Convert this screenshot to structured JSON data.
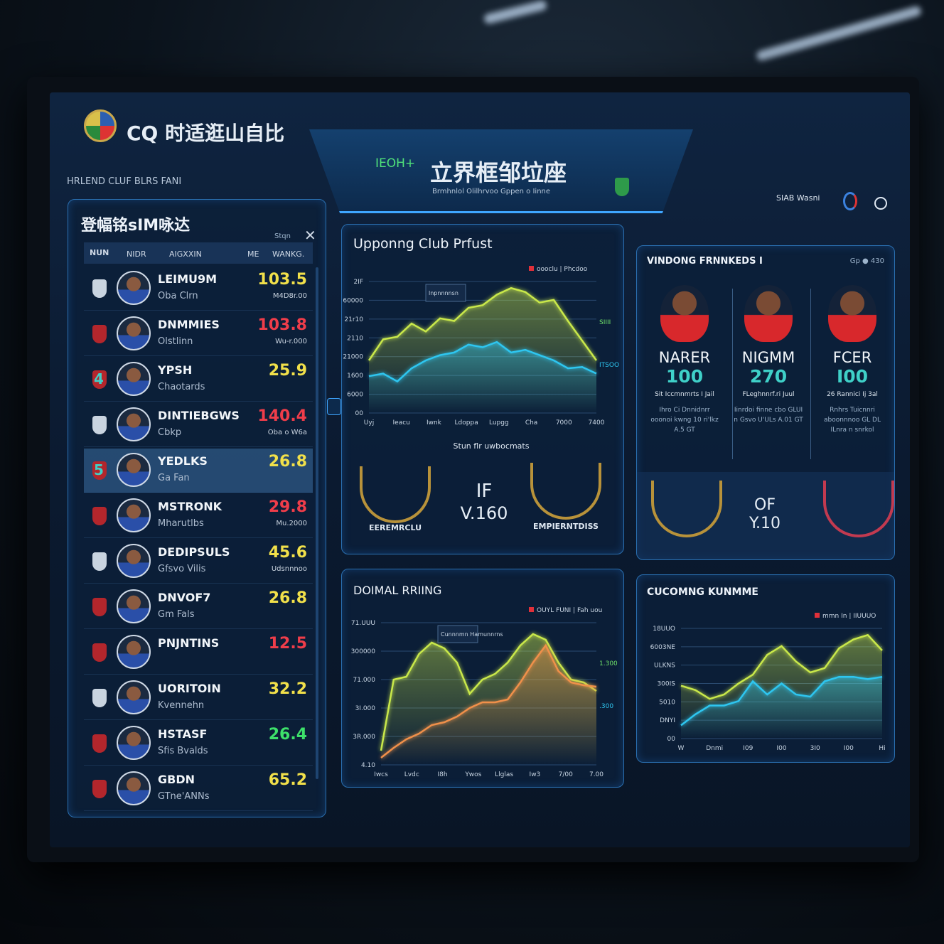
{
  "header": {
    "app_title": "CQ 时适逛山自比",
    "subtitle": "HRLEND CLUF BLRS FANI",
    "center_tag": "IEOH+",
    "center_title": "立界框邹垃座",
    "center_subtitle": "Brmhnlol Olilhrvoo Gppen o Iinne",
    "user_label": "SIAB Wasni"
  },
  "left_panel": {
    "title": "登幅铭sIM咏达",
    "action_label": "Stqn",
    "columns": [
      "NUN",
      "NIDR",
      "AIGXXIN",
      "ME",
      "WANKG."
    ],
    "rows": [
      {
        "rank": "",
        "name": "LEIMU9M",
        "club": "Oba Clrn",
        "value": "103.5",
        "sub": "M4D8r.00",
        "color": "#f1e04a"
      },
      {
        "rank": "",
        "name": "DNMMIES",
        "club": "Olstlinn",
        "value": "103.8",
        "sub": "Wu-r.000",
        "color": "#ef3d4a"
      },
      {
        "rank": "4",
        "name": "YPSH",
        "club": "Chaotards",
        "value": "25.9",
        "sub": "",
        "color": "#f1e04a"
      },
      {
        "rank": "",
        "name": "DINTIEBGWS",
        "club": "Cbkp",
        "value": "140.4",
        "sub": "Oba o W6a",
        "color": "#ef3d4a"
      },
      {
        "rank": "5",
        "name": "YEDLKS",
        "club": "Ga Fan",
        "value": "26.8",
        "sub": "",
        "color": "#f1e04a",
        "selected": true
      },
      {
        "rank": "",
        "name": "MSTRONK",
        "club": "Mharutlbs",
        "value": "29.8",
        "sub": "Mu.2000",
        "color": "#ef3d4a"
      },
      {
        "rank": "",
        "name": "DEDIPSULS",
        "club": "Gfsvo Vilis",
        "value": "45.6",
        "sub": "Udsnnnoo",
        "color": "#f1e04a"
      },
      {
        "rank": "",
        "name": "DNVOF7",
        "club": "Gm Fals",
        "value": "26.8",
        "sub": "",
        "color": "#f1e04a"
      },
      {
        "rank": "",
        "name": "PNJNTINS",
        "club": "",
        "value": "12.5",
        "sub": "",
        "color": "#ef3d4a"
      },
      {
        "rank": "",
        "name": "UORITOIN",
        "club": "Kvennehn",
        "value": "32.2",
        "sub": "",
        "color": "#f1e04a"
      },
      {
        "rank": "",
        "name": "HSTASF",
        "club": "Sfis Bvalds",
        "value": "26.4",
        "sub": "",
        "color": "#3de06a"
      },
      {
        "rank": "",
        "name": "GBDN",
        "club": "GTne'ANNs",
        "value": "65.2",
        "sub": "",
        "color": "#f1e04a"
      }
    ]
  },
  "upcoming_panel": {
    "title": "Upponng Club Prfust",
    "legend": "oooclu | Phcdoo",
    "tooltip": "lnpnnnnsn",
    "ylabels": [
      "2IF",
      "60000",
      "21r10",
      "2110",
      "21000",
      "1600",
      "6000",
      "00"
    ],
    "xlabels": [
      "Uyj",
      "Ieacu",
      "Iwnk",
      "Ldoppa",
      "Lupgg",
      "Cha",
      "7000",
      "7400"
    ],
    "end_labels": [
      "SIIII",
      "ITSOO"
    ],
    "caption": "Stun flr uwbocmats",
    "series": [
      {
        "color": "#c9e84a",
        "values": [
          40,
          56,
          58,
          68,
          62,
          72,
          70,
          80,
          82,
          90,
          95,
          92,
          84,
          86,
          70,
          55,
          40
        ]
      },
      {
        "color": "#2ec6f0",
        "values": [
          28,
          30,
          24,
          34,
          40,
          44,
          46,
          52,
          50,
          54,
          46,
          48,
          44,
          40,
          34,
          35,
          30
        ]
      }
    ],
    "badges": [
      {
        "label": "EEREMRCLU"
      },
      {
        "label": "EMPIERNTDISS"
      }
    ],
    "center_line1": "IF",
    "center_line2": "V.160"
  },
  "players_panel": {
    "title": "VINDONG FRNNKEDS I",
    "meta": "Gp ● 430",
    "players": [
      {
        "name": "NARER",
        "value": "100",
        "sub": "Sit Iccmnmrts I Jail",
        "desc": "Ihro Ci Dnnidnrr ooonoi kwng 10 ri'lkz A.5 GT"
      },
      {
        "name": "NIGMM",
        "value": "270",
        "sub": "FLeghnnrf.ri Juul",
        "desc": "Iinrdoi finne cbo GLUI n Gsvo U'ULs A.01 GT"
      },
      {
        "name": "FCER",
        "value": "I00",
        "sub": "26 Rannici Ij 3al",
        "desc": "Rnhrs Tuicnnri aboonnnoo GL DL ILnra n snrkol"
      }
    ],
    "center_line1": "OF",
    "center_line2": "Y.10"
  },
  "rating_panel": {
    "title": "DOIMAL RRIING",
    "legend": "OUYL FUNI | Fah uou",
    "tooltip": "Cunnnmn Hamunnrns",
    "ylabels": [
      "71.UUU",
      "300000",
      "71.000",
      "3I.000",
      "3R.000",
      "4.10"
    ],
    "xlabels": [
      "Iwcs",
      "Lvdc",
      "I8h",
      "Ywos",
      "Llglas",
      "Iw3",
      "7/00",
      "7.00"
    ],
    "end_labels": [
      "1.300",
      ".300"
    ],
    "series": [
      {
        "color": "#c9e84a",
        "values": [
          10,
          60,
          62,
          78,
          86,
          82,
          72,
          50,
          60,
          64,
          72,
          84,
          92,
          88,
          72,
          60,
          58,
          52
        ]
      },
      {
        "color": "#f0904a",
        "values": [
          5,
          12,
          18,
          22,
          28,
          30,
          34,
          40,
          44,
          44,
          46,
          58,
          72,
          84,
          66,
          58,
          56,
          55
        ]
      }
    ]
  },
  "income_panel": {
    "title": "CUCOMNG KUNMME",
    "legend": "mmn In | IIUUUO",
    "ylabels": [
      "18UUO",
      "6003NE",
      "ULKNS",
      "300IS",
      "5010",
      "DNYI",
      "00"
    ],
    "xlabels": [
      "W",
      "Dnmi",
      "I09",
      "I00",
      "3I0",
      "I00",
      "Hi"
    ],
    "series": [
      {
        "color": "#c9e84a",
        "values": [
          48,
          44,
          36,
          40,
          50,
          58,
          76,
          84,
          70,
          60,
          64,
          82,
          90,
          94,
          80
        ]
      },
      {
        "color": "#2ec6f0",
        "values": [
          12,
          22,
          30,
          30,
          34,
          52,
          40,
          50,
          40,
          38,
          52,
          56,
          56,
          54,
          56
        ]
      }
    ]
  }
}
